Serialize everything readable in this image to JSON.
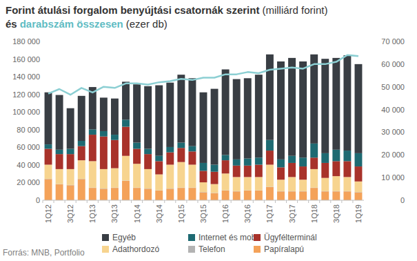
{
  "chart_data": {
    "type": "bar",
    "stacked": true,
    "title": "Forint átulási forgalom benyújtási csatornák szerint",
    "y_label": "(milliárd forint)",
    "title_line2": "és",
    "y2_label": "(ezer db)",
    "source": "Forrás: MNB, Portfolio",
    "legend": "bottom",
    "grid": false,
    "categories": [
      "1Q12",
      null,
      "3Q12",
      null,
      "1Q13",
      null,
      "3Q13",
      null,
      "1Q14",
      null,
      "3Q14",
      null,
      "1Q15",
      null,
      "3Q15",
      null,
      "1Q16",
      null,
      "3Q16",
      null,
      "1Q17",
      null,
      "3Q17",
      null,
      "1Q18",
      null,
      "3Q18",
      null,
      "1Q19"
    ],
    "ylim": [
      0,
      180000
    ],
    "yticks": [
      0,
      {
        "value": 20000,
        "label": "20 000"
      },
      {
        "value": 40000,
        "label": "40 000"
      },
      {
        "value": 60000,
        "label": "60 000"
      },
      {
        "value": 80000,
        "label": "80 000"
      },
      {
        "value": 100000,
        "label": "100 000"
      },
      {
        "value": 120000,
        "label": "120 000"
      },
      {
        "value": 140000,
        "label": "140 000"
      },
      {
        "value": 160000,
        "label": "160 000"
      },
      {
        "value": 180000,
        "label": "180 000"
      }
    ],
    "y2lim": [
      0,
      70000
    ],
    "y2ticks": [
      0,
      {
        "value": 10000,
        "label": "10 000"
      },
      {
        "value": 20000,
        "label": "20 000"
      },
      {
        "value": 30000,
        "label": "30 000"
      },
      {
        "value": 40000,
        "label": "40 000"
      },
      {
        "value": 50000,
        "label": "50 000"
      },
      {
        "value": 60000,
        "label": "60 000"
      },
      {
        "value": 70000,
        "label": "70 000"
      }
    ],
    "series": [
      {
        "name": "Papíralapú",
        "color": "#f4a259",
        "values": [
          24000,
          18000,
          17000,
          24000,
          14000,
          13000,
          14000,
          22000,
          14000,
          13000,
          11000,
          13000,
          14000,
          14000,
          9000,
          8000,
          11000,
          10000,
          11000,
          11000,
          15000,
          10000,
          10000,
          10000,
          14000,
          10000,
          10000,
          10000,
          9000
        ]
      },
      {
        "name": "Telefon",
        "color": "#b3b3b3",
        "values": [
          300,
          300,
          300,
          300,
          300,
          300,
          300,
          300,
          300,
          300,
          300,
          300,
          300,
          300,
          300,
          300,
          300,
          300,
          300,
          300,
          300,
          300,
          300,
          300,
          300,
          300,
          300,
          300,
          300
        ]
      },
      {
        "name": "Adathordozó",
        "color": "#f7d48f",
        "values": [
          16000,
          17000,
          18000,
          21000,
          30000,
          22000,
          22000,
          28000,
          27000,
          22000,
          18000,
          27000,
          29000,
          26000,
          11000,
          10000,
          19000,
          16000,
          15000,
          15000,
          25000,
          13000,
          16000,
          13000,
          21000,
          15000,
          17000,
          16000,
          12000
        ]
      },
      {
        "name": "Ügyfélterminál",
        "color": "#a8322a",
        "values": [
          18000,
          17000,
          17000,
          16000,
          30000,
          37000,
          32000,
          33000,
          17000,
          17000,
          15000,
          14000,
          16000,
          15000,
          13000,
          14000,
          15000,
          13000,
          13000,
          14000,
          16000,
          14000,
          16000,
          15000,
          13000,
          17000,
          17000,
          18000,
          17000
        ]
      },
      {
        "name": "Internet és mobil",
        "color": "#1e6a72",
        "values": [
          5000,
          5000,
          6000,
          6000,
          6000,
          6000,
          6000,
          8000,
          7000,
          6000,
          6000,
          6000,
          6000,
          6000,
          9000,
          8000,
          6000,
          7000,
          8000,
          8000,
          12000,
          9000,
          8000,
          10000,
          16000,
          11000,
          13000,
          12000,
          15000
        ]
      },
      {
        "name": "Egyéb",
        "color": "#393e44",
        "values": [
          59000,
          62000,
          46000,
          51000,
          48000,
          38000,
          41000,
          43000,
          66000,
          71000,
          80000,
          73000,
          77000,
          77000,
          80000,
          86000,
          97000,
          91000,
          91000,
          94000,
          97000,
          111000,
          111000,
          109000,
          101000,
          107000,
          104000,
          108000,
          101000
        ]
      },
      {
        "name": "darabszám összesen",
        "type": "line",
        "axis": "y2",
        "color": "#8ccfd3",
        "values": [
          47000,
          49000,
          46500,
          49500,
          47500,
          50000,
          49500,
          51500,
          51500,
          51000,
          52000,
          52500,
          53500,
          53000,
          54000,
          54000,
          55500,
          55500,
          56500,
          56000,
          57500,
          58000,
          58500,
          58000,
          60000,
          60000,
          61000,
          64000,
          63500
        ]
      }
    ]
  }
}
